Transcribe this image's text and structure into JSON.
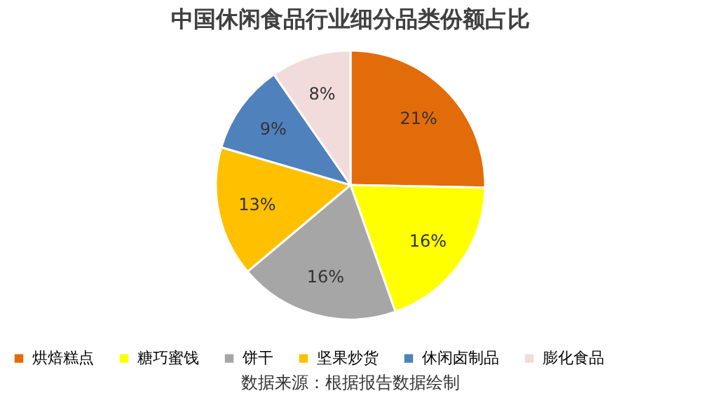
{
  "chart_data": {
    "type": "pie",
    "title": "中国休闲食品行业细分品类份额占比",
    "categories": [
      "烘焙糕点",
      "糖巧蜜饯",
      "饼干",
      "坚果炒货",
      "休闲卤制品",
      "膨化食品"
    ],
    "values": [
      21,
      16,
      16,
      13,
      9,
      8
    ],
    "value_labels": [
      "21%",
      "16%",
      "16%",
      "13%",
      "9%",
      "8%"
    ],
    "colors": [
      "#e36c0a",
      "#ffff00",
      "#a6a6a6",
      "#ffc000",
      "#4f81bd",
      "#f2dcdb"
    ],
    "legend": "bottom",
    "annotations": [
      "数据来源：根据报告数据绘制"
    ]
  }
}
